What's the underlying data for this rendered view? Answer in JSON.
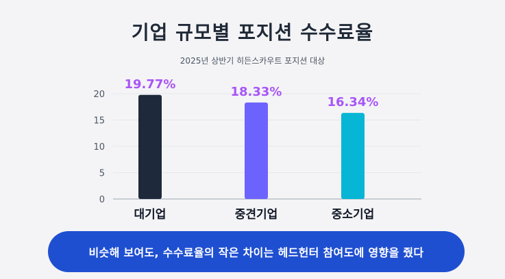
{
  "page": {
    "title": "기업 규모별 포지션 수수료율",
    "subtitle": "2025년 상반기 히든스카우트 포지션 대상",
    "banner": "비슷해 보여도, 수수료율의 작은 차이는 헤드헌터 참여도에 영향을 줬다"
  },
  "colors": {
    "bars": [
      "#1e293b",
      "#6c63ff",
      "#06b6d4"
    ],
    "value_labels": "#a855f7",
    "grid": "#e5e7eb",
    "axis": "#9ca3af",
    "banner": "#1f4fd1"
  },
  "chart_data": {
    "type": "bar",
    "title": "기업 규모별 포지션 수수료율",
    "subtitle": "2025년 상반기 히든스카우트 포지션 대상",
    "categories": [
      "대기업",
      "중견기업",
      "중소기업"
    ],
    "values": [
      19.77,
      18.33,
      16.34
    ],
    "value_labels": [
      "19.77%",
      "18.33%",
      "16.34%"
    ],
    "y_ticks": [
      0,
      5,
      10,
      15,
      20
    ],
    "ylim": [
      0,
      20
    ],
    "grid": true,
    "xlabel": "",
    "ylabel": ""
  }
}
